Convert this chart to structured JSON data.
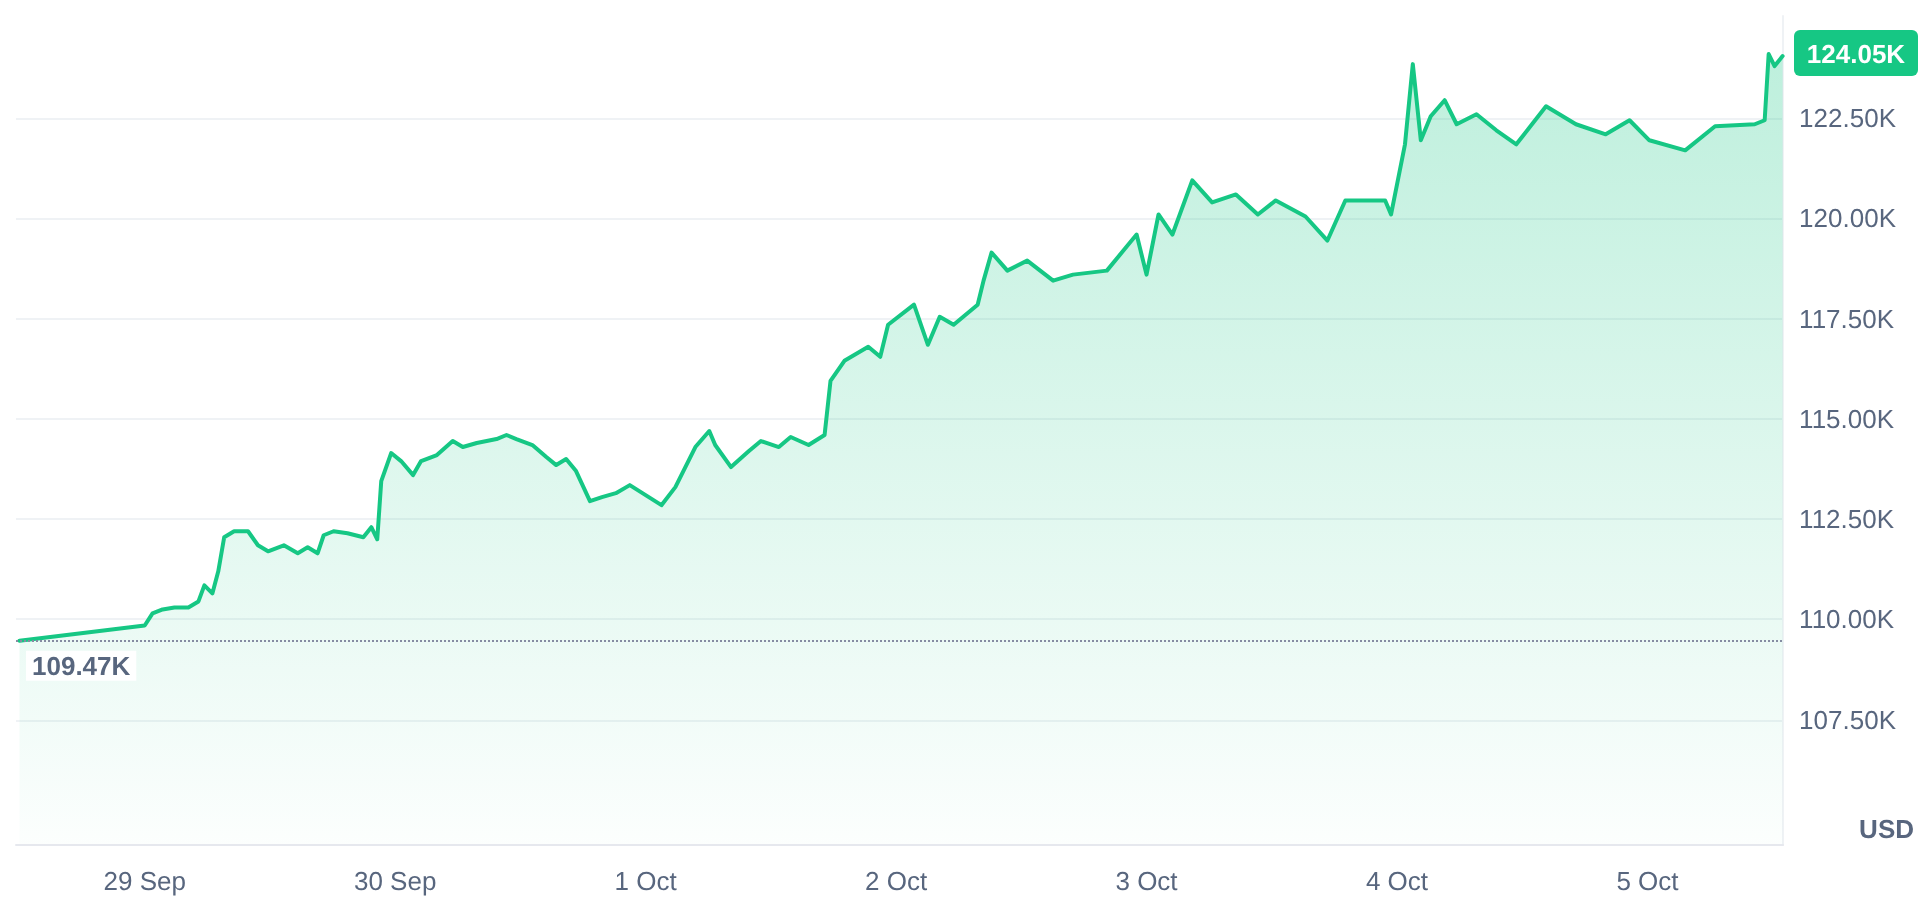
{
  "chart_data": {
    "type": "area",
    "ylabel": "USD",
    "x": [
      "--09-28T12:00",
      "--09-29T00:00",
      "--09-29T00:45",
      "--09-29T01:43",
      "--09-29T02:51",
      "--09-29T04:11",
      "--09-29T05:09",
      "--09-29T05:43",
      "--09-29T06:29",
      "--09-29T07:03",
      "--09-29T07:37",
      "--09-29T08:34",
      "--09-29T09:54",
      "--09-29T10:51",
      "--09-29T11:49",
      "--09-29T13:20",
      "--09-29T14:40",
      "--09-29T15:37",
      "--09-29T16:34",
      "--09-29T17:09",
      "--09-29T18:06",
      "--09-29T19:26",
      "--09-29T20:57",
      "--09-29T21:43",
      "--09-29T22:17",
      "--09-29T22:40",
      "--09-29T23:37",
      "--09-30T00:34",
      "--09-30T01:43",
      "--09-30T02:29",
      "--09-30T04:00",
      "--09-30T05:31",
      "--09-30T06:29",
      "--09-30T07:49",
      "--09-30T09:43",
      "--09-30T10:40",
      "--09-30T11:37",
      "--09-30T13:09",
      "--09-30T14:29",
      "--09-30T15:26",
      "--09-30T16:23",
      "--09-30T17:20",
      "--09-30T18:40",
      "--09-30T19:49",
      "--09-30T21:09",
      "--09-30T22:29",
      "--10-01T01:31",
      "--10-01T02:51",
      "--10-01T04:46",
      "--10-01T06:06",
      "--10-01T06:40",
      "--10-01T08:11",
      "--10-01T09:54",
      "--10-01T11:03",
      "--10-01T12:46",
      "--10-01T13:54",
      "--10-01T15:37",
      "--10-01T17:09",
      "--10-01T17:43",
      "--10-01T19:03",
      "--10-01T21:20",
      "--10-01T22:29",
      "--10-01T23:14",
      "--10-02T01:43",
      "--10-02T03:03",
      "--10-02T04:11",
      "--10-02T05:31",
      "--10-02T07:49",
      "--10-02T08:23",
      "--10-02T09:09",
      "--10-02T10:40",
      "--10-02T12:34",
      "--10-02T15:03",
      "--10-02T16:57",
      "--10-02T20:12",
      "--10-02T22:06",
      "--10-02T23:03",
      "--10-03T00:00",
      "--10-03T01:09",
      "--10-03T02:29",
      "--10-03T04:23",
      "--10-03T06:17",
      "--10-03T08:34",
      "--10-03T10:40",
      "--10-03T12:23",
      "--10-03T15:14",
      "--10-03T17:20",
      "--10-03T19:03",
      "--10-03T22:52",
      "--10-03T23:26",
      "--10-04T00:46",
      "--10-04T01:31",
      "--10-04T02:17",
      "--10-04T03:14",
      "--10-04T04:34",
      "--10-04T05:43",
      "--10-04T07:37",
      "--10-04T09:31",
      "--10-04T11:26",
      "--10-04T14:17",
      "--10-04T17:09",
      "--10-04T20:00",
      "--10-04T22:17",
      "--10-05T00:11",
      "--10-05T03:37",
      "--10-05T06:29",
      "--10-05T10:17",
      "--10-05T11:14",
      "--10-05T11:37",
      "--10-05T12:11",
      "--10-05T12:57"
    ],
    "series": [
      {
        "color": "#16c784",
        "values": [
          109.47,
          109.85,
          110.15,
          110.25,
          110.3,
          110.3,
          110.45,
          110.85,
          110.65,
          111.2,
          112.05,
          112.2,
          112.2,
          111.85,
          111.7,
          111.85,
          111.65,
          111.8,
          111.65,
          112.1,
          112.2,
          112.15,
          112.05,
          112.3,
          112.0,
          113.45,
          114.15,
          113.95,
          113.6,
          113.95,
          114.1,
          114.45,
          114.3,
          114.4,
          114.5,
          114.6,
          114.5,
          114.35,
          114.05,
          113.85,
          114.0,
          113.7,
          112.95,
          113.05,
          113.15,
          113.35,
          112.85,
          113.3,
          114.3,
          114.7,
          114.35,
          113.8,
          114.2,
          114.45,
          114.3,
          114.55,
          114.35,
          114.6,
          115.95,
          116.45,
          116.8,
          116.55,
          117.35,
          117.85,
          116.85,
          117.55,
          117.35,
          117.85,
          118.45,
          119.15,
          118.7,
          118.95,
          118.45,
          118.6,
          118.7,
          119.3,
          119.6,
          118.6,
          120.1,
          119.6,
          120.95,
          120.4,
          120.6,
          120.1,
          120.45,
          120.05,
          119.45,
          120.45,
          120.45,
          120.1,
          121.85,
          123.85,
          121.95,
          122.55,
          122.95,
          122.35,
          122.6,
          122.2,
          121.85,
          122.8,
          122.35,
          122.1,
          122.45,
          121.95,
          121.7,
          122.3,
          122.35,
          122.45,
          124.1,
          123.8,
          124.05
        ]
      }
    ],
    "xlim": [
      "--09-28T11:40",
      "--10-05T13:00"
    ],
    "xticks": [
      {
        "value": "--09-29",
        "label": "29 Sep"
      },
      {
        "value": "--09-30",
        "label": "30 Sep"
      },
      {
        "value": "--10-01",
        "label": "1 Oct"
      },
      {
        "value": "--10-02",
        "label": "2 Oct"
      },
      {
        "value": "--10-03",
        "label": "3 Oct"
      },
      {
        "value": "--10-04",
        "label": "4 Oct"
      },
      {
        "value": "--10-05",
        "label": "5 Oct"
      }
    ],
    "ylim": [
      104.4,
      125.05
    ],
    "yticks": [
      {
        "value": 107.5,
        "label": "107.50K"
      },
      {
        "value": 110,
        "label": "110.00K"
      },
      {
        "value": 112.5,
        "label": "112.50K"
      },
      {
        "value": 115,
        "label": "115.00K"
      },
      {
        "value": 117.5,
        "label": "117.50K"
      },
      {
        "value": 120,
        "label": "120.00K"
      },
      {
        "value": 122.5,
        "label": "122.50K"
      }
    ],
    "ref_lines": [
      {
        "axis": "y",
        "value": 109.47,
        "label": "109.47K",
        "line_style": "dotted",
        "color": "#858ca2"
      }
    ],
    "annotations": [
      "124.05K"
    ],
    "grid": "y",
    "marker": "none",
    "line_style": "solid"
  }
}
